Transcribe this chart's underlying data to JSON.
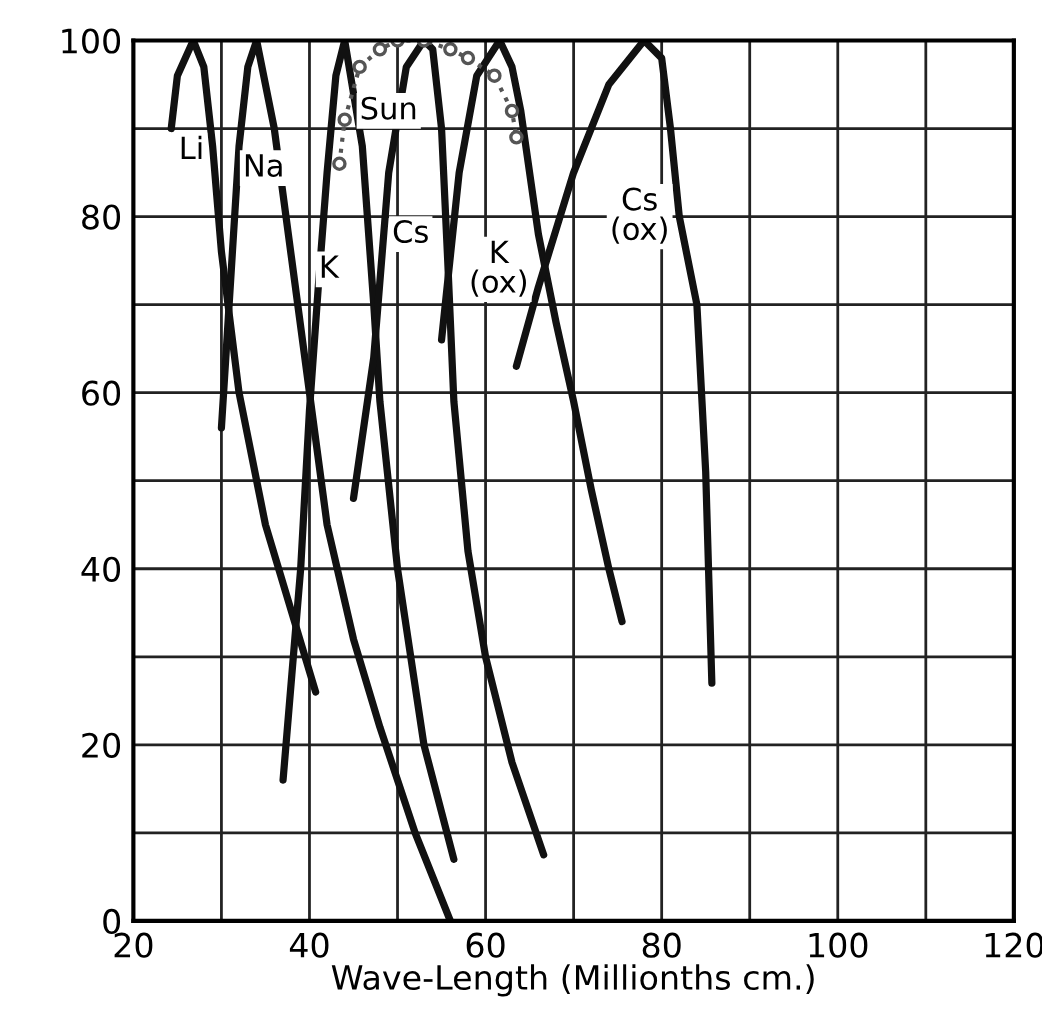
{
  "chart_data": {
    "type": "line",
    "xlabel": "Wave-Length (Millionths cm.)",
    "xlim": [
      20,
      120
    ],
    "ylim": [
      0,
      100
    ],
    "xticks": [
      20,
      {
        "value": 30,
        "label": null
      },
      40,
      {
        "value": 50,
        "label": null
      },
      60,
      {
        "value": 70,
        "label": null
      },
      80,
      {
        "value": 90,
        "label": null
      },
      100,
      {
        "value": 110,
        "label": null
      },
      120
    ],
    "yticks": [
      0,
      {
        "value": 10,
        "label": null
      },
      20,
      {
        "value": 30,
        "label": null
      },
      40,
      {
        "value": 50,
        "label": null
      },
      60,
      {
        "value": 70,
        "label": null
      },
      80,
      {
        "value": 90,
        "label": null
      },
      100
    ],
    "grid": true,
    "marker": "none",
    "line_style": "solid",
    "series": [
      {
        "name": "Li",
        "color": "#111111",
        "x": [
          24.3,
          25,
          26.8,
          28,
          29,
          30,
          32,
          35,
          38,
          40.7
        ],
        "values": [
          90,
          96,
          100,
          97,
          88,
          76,
          60,
          45,
          35,
          26
        ]
      },
      {
        "name": "Na",
        "color": "#111111",
        "x": [
          30,
          31,
          32,
          33,
          34,
          36,
          38,
          40,
          42,
          45,
          48,
          52,
          56
        ],
        "values": [
          56,
          72,
          88,
          97,
          100,
          90,
          75,
          60,
          45,
          32,
          22,
          10,
          0
        ]
      },
      {
        "name": "K",
        "color": "#111111",
        "x": [
          37,
          38,
          39,
          40,
          41,
          42,
          43,
          44,
          46,
          47.3,
          48,
          50,
          53,
          56.4
        ],
        "values": [
          16,
          28,
          40,
          58,
          72,
          85,
          96,
          100,
          88,
          70,
          59,
          40,
          20,
          7
        ]
      },
      {
        "name": "Cs",
        "color": "#111111",
        "x": [
          45,
          47.3,
          49,
          51,
          53,
          54,
          55,
          55.7,
          56.4,
          58,
          60,
          63,
          66.6
        ],
        "values": [
          48,
          64,
          85,
          97,
          100,
          99,
          90,
          75,
          59,
          42,
          30,
          18,
          7.5
        ]
      },
      {
        "name": "K\n(ox)",
        "color": "#111111",
        "x": [
          55,
          57,
          59,
          61.6,
          63,
          64,
          66,
          68,
          70,
          72,
          74,
          75.5
        ],
        "values": [
          66,
          85,
          96,
          100,
          97,
          92,
          78,
          68,
          59,
          49,
          40,
          34
        ]
      },
      {
        "name": "Cs\n(ox)",
        "color": "#111111",
        "x": [
          63.5,
          66,
          70,
          74,
          78,
          80,
          81,
          82,
          84,
          85,
          85.7
        ],
        "values": [
          63,
          72,
          85,
          95,
          100,
          98,
          90,
          80,
          70,
          51,
          27
        ]
      },
      {
        "name": "Sun",
        "color": "#555555",
        "type": "line",
        "line_style": "dotted",
        "marker": "circle",
        "x": [
          43.4,
          44,
          45.7,
          48,
          50,
          53,
          56,
          58,
          61,
          63,
          63.5
        ],
        "values": [
          86,
          91,
          97,
          99,
          100,
          100,
          99,
          98,
          96,
          92,
          89
        ]
      }
    ]
  }
}
